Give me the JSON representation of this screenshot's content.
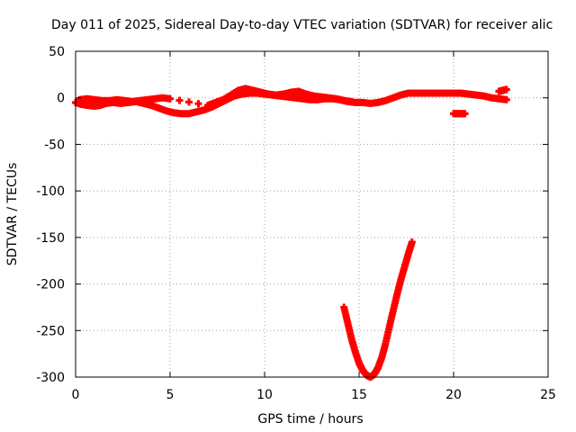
{
  "chart_data": {
    "type": "scatter",
    "title": "Day 011 of 2025, Sidereal Day-to-day VTEC variation (SDTVAR) for receiver alic",
    "xlabel": "GPS time / hours",
    "ylabel": "SDTVAR / TECUs",
    "xlim": [
      0,
      25
    ],
    "ylim": [
      -300,
      50
    ],
    "xticks": [
      0,
      5,
      10,
      15,
      20,
      25
    ],
    "yticks": [
      50,
      0,
      -50,
      -100,
      -150,
      -200,
      -250,
      -300
    ],
    "grid": true,
    "legend": "none",
    "marker": "plus",
    "series": [
      {
        "color": "#ff0000",
        "x": [
          0.0,
          0.3,
          0.6,
          1.0,
          1.3,
          1.6,
          2.0,
          2.4,
          2.8,
          3.2,
          3.6,
          4.0,
          4.4,
          4.8,
          5.2,
          5.6,
          6.0,
          6.4,
          6.8,
          7.2,
          7.6,
          8.0,
          8.4,
          8.8,
          9.2,
          9.6,
          10.0,
          10.4,
          10.8,
          11.2,
          11.6,
          12.0,
          12.4,
          12.8,
          13.2,
          13.6,
          14.0,
          14.4,
          14.8,
          15.2,
          15.6,
          16.0,
          16.4,
          16.8,
          17.2,
          17.6,
          18.0,
          18.4,
          18.8,
          19.2,
          19.6,
          20.0,
          20.4,
          20.8,
          21.2,
          21.6,
          22.0,
          22.4,
          22.8
        ],
        "y": [
          -5,
          -7,
          -8,
          -9,
          -8,
          -6,
          -5,
          -6,
          -5,
          -4,
          -6,
          -8,
          -11,
          -14,
          -16,
          -17,
          -17,
          -15,
          -13,
          -10,
          -6,
          -2,
          2,
          4,
          5,
          5,
          4,
          3,
          2,
          1,
          0,
          -1,
          -2,
          -2,
          -1,
          -1,
          -2,
          -4,
          -5,
          -5,
          -6,
          -5,
          -3,
          0,
          3,
          5,
          5,
          5,
          5,
          5,
          5,
          5,
          5,
          4,
          3,
          2,
          0,
          -1,
          -2
        ],
        "x2": [
          0.2,
          0.6,
          1.0,
          1.4,
          1.8,
          2.2,
          2.6,
          3.0,
          3.4,
          3.8,
          4.2,
          4.6,
          5.0,
          7.0,
          7.4,
          7.8,
          8.2,
          8.6,
          9.0,
          9.4,
          9.8,
          10.2,
          10.6,
          11.0,
          11.4,
          11.8,
          12.2,
          12.6,
          13.0,
          13.4,
          13.8,
          14.2,
          14.6
        ],
        "y2": [
          -2,
          -1,
          -2,
          -3,
          -3,
          -2,
          -3,
          -4,
          -3,
          -2,
          -1,
          0,
          -1,
          -8,
          -5,
          -2,
          3,
          8,
          10,
          8,
          6,
          4,
          3,
          4,
          6,
          7,
          4,
          2,
          1,
          0,
          -1,
          -3,
          -4
        ]
      },
      {
        "color": "#ff0000",
        "x": [
          14.2,
          14.4,
          14.6,
          14.8,
          15.0,
          15.2,
          15.4,
          15.6,
          15.8,
          16.0,
          16.2,
          16.4,
          16.6,
          16.8,
          17.0,
          17.2,
          17.4,
          17.6,
          17.8
        ],
        "y": [
          -225,
          -242,
          -259,
          -273,
          -285,
          -293,
          -298,
          -300,
          -297,
          -290,
          -279,
          -264,
          -246,
          -229,
          -212,
          -196,
          -182,
          -168,
          -155
        ]
      },
      {
        "color": "#ff0000",
        "x": [
          20.0,
          20.2,
          20.4,
          20.6
        ],
        "y": [
          -17,
          -17,
          -17,
          -17
        ]
      },
      {
        "color": "#ff0000",
        "x": [
          22.4,
          22.6,
          22.8
        ],
        "y": [
          7,
          8,
          9
        ]
      }
    ]
  }
}
